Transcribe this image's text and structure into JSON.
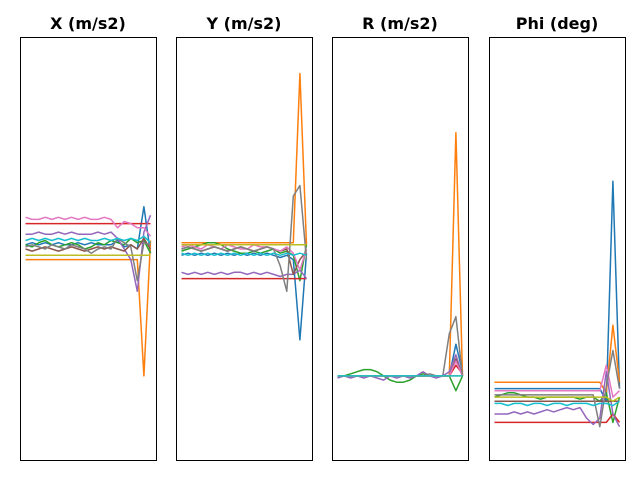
{
  "chart_data": [
    {
      "type": "line",
      "title": "X (m/s2)",
      "xlabel": "",
      "ylabel": "",
      "xlim": [
        0,
        20
      ],
      "ylim": [
        -1,
        1
      ],
      "grid": false,
      "series": [
        {
          "color": "#1f77b4",
          "values": [
            0.02,
            0.03,
            0.02,
            0.03,
            0.02,
            0.03,
            0.02,
            0.02,
            0.03,
            0.02,
            0.03,
            0.02,
            0.02,
            0.02,
            0.04,
            0.01,
            0.02,
            0.0,
            0.2,
            -0.02
          ]
        },
        {
          "color": "#ff7f0e",
          "values": [
            -0.05,
            -0.05,
            -0.05,
            -0.05,
            -0.05,
            -0.05,
            -0.05,
            -0.05,
            -0.05,
            -0.05,
            -0.05,
            -0.05,
            -0.05,
            -0.05,
            -0.05,
            -0.05,
            -0.05,
            -0.05,
            -0.6,
            0.04
          ]
        },
        {
          "color": "#2ca02c",
          "values": [
            0.02,
            0.01,
            0.03,
            0.04,
            0.02,
            0.01,
            0.02,
            0.03,
            0.02,
            0.0,
            0.01,
            0.03,
            0.02,
            0.04,
            0.03,
            0.02,
            0.05,
            0.03,
            0.04,
            -0.02
          ]
        },
        {
          "color": "#d62728",
          "values": [
            0.12,
            0.12,
            0.12,
            0.12,
            0.12,
            0.12,
            0.12,
            0.12,
            0.12,
            0.12,
            0.12,
            0.12,
            0.12,
            0.12,
            0.12,
            0.12,
            0.12,
            0.12,
            0.12,
            0.12
          ]
        },
        {
          "color": "#9467bd",
          "values": [
            0.07,
            0.07,
            0.08,
            0.07,
            0.07,
            0.08,
            0.07,
            0.08,
            0.07,
            0.07,
            0.07,
            0.08,
            0.07,
            0.08,
            0.05,
            0.0,
            -0.05,
            -0.2,
            0.08,
            0.16
          ]
        },
        {
          "color": "#8c564b",
          "values": [
            0.0,
            -0.01,
            0.0,
            0.01,
            0.0,
            -0.01,
            0.0,
            0.01,
            0.0,
            -0.01,
            0.0,
            0.01,
            0.0,
            0.01,
            0.0,
            -0.01,
            0.02,
            0.0,
            0.05,
            0.0
          ]
        },
        {
          "color": "#e377c2",
          "values": [
            0.15,
            0.14,
            0.14,
            0.15,
            0.14,
            0.15,
            0.14,
            0.15,
            0.14,
            0.15,
            0.14,
            0.14,
            0.15,
            0.14,
            0.1,
            0.13,
            0.12,
            0.1,
            0.1,
            0.06
          ]
        },
        {
          "color": "#7f7f7f",
          "values": [
            0.01,
            0.02,
            0.01,
            0.0,
            0.02,
            0.01,
            0.0,
            0.02,
            0.01,
            0.0,
            -0.02,
            0.0,
            0.01,
            0.0,
            0.05,
            0.03,
            0.01,
            -0.15,
            0.03,
            0.02
          ]
        },
        {
          "color": "#bcbd22",
          "values": [
            -0.03,
            -0.03,
            -0.03,
            -0.03,
            -0.03,
            -0.03,
            -0.03,
            -0.03,
            -0.03,
            -0.03,
            -0.03,
            -0.03,
            -0.03,
            -0.03,
            -0.03,
            -0.03,
            -0.03,
            -0.03,
            -0.03,
            -0.03
          ]
        },
        {
          "color": "#17becf",
          "values": [
            0.04,
            0.05,
            0.04,
            0.05,
            0.04,
            0.05,
            0.04,
            0.05,
            0.04,
            0.05,
            0.04,
            0.04,
            0.05,
            0.04,
            0.05,
            0.04,
            0.05,
            0.04,
            0.06,
            0.03
          ]
        }
      ]
    },
    {
      "type": "line",
      "title": "Y (m/s2)",
      "xlabel": "",
      "ylabel": "",
      "xlim": [
        0,
        20
      ],
      "ylim": [
        -1,
        1
      ],
      "grid": false,
      "series": [
        {
          "color": "#1f77b4",
          "values": [
            -0.03,
            -0.02,
            -0.03,
            -0.02,
            -0.03,
            -0.02,
            -0.03,
            -0.02,
            -0.03,
            -0.02,
            -0.03,
            -0.02,
            -0.03,
            -0.02,
            -0.03,
            -0.04,
            -0.03,
            -0.05,
            -0.43,
            -0.02
          ]
        },
        {
          "color": "#ff7f0e",
          "values": [
            0.03,
            0.03,
            0.03,
            0.03,
            0.03,
            0.03,
            0.03,
            0.03,
            0.03,
            0.03,
            0.03,
            0.03,
            0.03,
            0.03,
            0.03,
            0.03,
            0.03,
            0.03,
            0.83,
            0.02
          ]
        },
        {
          "color": "#2ca02c",
          "values": [
            -0.01,
            0.0,
            0.01,
            0.02,
            0.03,
            0.03,
            0.02,
            0.0,
            -0.01,
            -0.02,
            -0.02,
            -0.01,
            -0.02,
            -0.01,
            0.0,
            -0.02,
            -0.01,
            -0.03,
            -0.15,
            0.02
          ]
        },
        {
          "color": "#d62728",
          "values": [
            -0.14,
            -0.14,
            -0.14,
            -0.14,
            -0.14,
            -0.14,
            -0.14,
            -0.14,
            -0.14,
            -0.14,
            -0.14,
            -0.14,
            -0.14,
            -0.14,
            -0.14,
            -0.14,
            -0.14,
            -0.14,
            -0.14,
            -0.14
          ]
        },
        {
          "color": "#9467bd",
          "values": [
            -0.11,
            -0.12,
            -0.11,
            -0.12,
            -0.11,
            -0.12,
            -0.11,
            -0.12,
            -0.11,
            -0.11,
            -0.12,
            -0.11,
            -0.12,
            -0.11,
            -0.12,
            -0.13,
            -0.12,
            -0.12,
            -0.1,
            -0.14
          ]
        },
        {
          "color": "#8c564b",
          "values": [
            0.0,
            0.01,
            0.0,
            -0.01,
            0.0,
            0.01,
            0.0,
            -0.01,
            0.0,
            0.01,
            0.0,
            -0.01,
            0.0,
            0.01,
            0.0,
            -0.01,
            0.0,
            -0.12,
            -0.05,
            -0.01
          ]
        },
        {
          "color": "#e377c2",
          "values": [
            0.01,
            0.02,
            0.01,
            0.0,
            0.02,
            0.01,
            0.0,
            0.02,
            0.01,
            0.0,
            0.0,
            0.02,
            0.01,
            0.01,
            0.0,
            -0.01,
            0.01,
            -0.02,
            -0.1,
            0.0
          ]
        },
        {
          "color": "#7f7f7f",
          "values": [
            0.0,
            0.01,
            0.0,
            -0.01,
            0.0,
            0.01,
            0.0,
            -0.01,
            0.0,
            0.01,
            0.0,
            -0.01,
            0.0,
            0.01,
            0.0,
            -0.08,
            -0.2,
            0.25,
            0.3,
            -0.05
          ]
        },
        {
          "color": "#bcbd22",
          "values": [
            0.02,
            0.02,
            0.02,
            0.02,
            0.02,
            0.02,
            0.02,
            0.02,
            0.02,
            0.02,
            0.02,
            0.02,
            0.02,
            0.02,
            0.02,
            0.02,
            0.02,
            0.02,
            0.02,
            0.02
          ]
        },
        {
          "color": "#17becf",
          "values": [
            -0.02,
            -0.03,
            -0.02,
            -0.03,
            -0.02,
            -0.03,
            -0.02,
            -0.03,
            -0.02,
            -0.03,
            -0.02,
            -0.03,
            -0.02,
            -0.03,
            -0.02,
            -0.03,
            -0.02,
            -0.03,
            -0.02,
            -0.03
          ]
        }
      ]
    },
    {
      "type": "line",
      "title": "R (m/s2)",
      "xlabel": "",
      "ylabel": "",
      "xlim": [
        0,
        20
      ],
      "ylim": [
        -1,
        1
      ],
      "grid": false,
      "series": [
        {
          "color": "#1f77b4",
          "values": [
            -0.6,
            -0.6,
            -0.6,
            -0.6,
            -0.6,
            -0.6,
            -0.6,
            -0.6,
            -0.6,
            -0.6,
            -0.6,
            -0.6,
            -0.6,
            -0.6,
            -0.6,
            -0.6,
            -0.6,
            -0.6,
            -0.45,
            -0.58
          ]
        },
        {
          "color": "#ff7f0e",
          "values": [
            -0.6,
            -0.6,
            -0.6,
            -0.6,
            -0.6,
            -0.6,
            -0.6,
            -0.6,
            -0.6,
            -0.6,
            -0.6,
            -0.6,
            -0.6,
            -0.6,
            -0.6,
            -0.6,
            -0.6,
            -0.6,
            0.55,
            -0.6
          ]
        },
        {
          "color": "#2ca02c",
          "values": [
            -0.6,
            -0.6,
            -0.59,
            -0.58,
            -0.57,
            -0.57,
            -0.58,
            -0.6,
            -0.62,
            -0.63,
            -0.63,
            -0.62,
            -0.6,
            -0.59,
            -0.6,
            -0.6,
            -0.6,
            -0.6,
            -0.67,
            -0.6
          ]
        },
        {
          "color": "#d62728",
          "values": [
            -0.6,
            -0.6,
            -0.6,
            -0.6,
            -0.6,
            -0.6,
            -0.6,
            -0.6,
            -0.6,
            -0.6,
            -0.6,
            -0.6,
            -0.6,
            -0.6,
            -0.6,
            -0.6,
            -0.6,
            -0.6,
            -0.55,
            -0.59
          ]
        },
        {
          "color": "#9467bd",
          "values": [
            -0.61,
            -0.6,
            -0.61,
            -0.6,
            -0.61,
            -0.6,
            -0.61,
            -0.62,
            -0.6,
            -0.61,
            -0.6,
            -0.61,
            -0.6,
            -0.58,
            -0.6,
            -0.61,
            -0.6,
            -0.58,
            -0.5,
            -0.6
          ]
        },
        {
          "color": "#8c564b",
          "values": [
            -0.6,
            -0.6,
            -0.6,
            -0.6,
            -0.6,
            -0.6,
            -0.6,
            -0.6,
            -0.6,
            -0.6,
            -0.6,
            -0.6,
            -0.6,
            -0.6,
            -0.6,
            -0.6,
            -0.6,
            -0.6,
            -0.52,
            -0.6
          ]
        },
        {
          "color": "#e377c2",
          "values": [
            -0.6,
            -0.6,
            -0.6,
            -0.6,
            -0.6,
            -0.6,
            -0.6,
            -0.6,
            -0.6,
            -0.6,
            -0.6,
            -0.6,
            -0.6,
            -0.6,
            -0.6,
            -0.6,
            -0.6,
            -0.6,
            -0.53,
            -0.6
          ]
        },
        {
          "color": "#7f7f7f",
          "values": [
            -0.6,
            -0.6,
            -0.6,
            -0.6,
            -0.6,
            -0.6,
            -0.6,
            -0.6,
            -0.6,
            -0.6,
            -0.6,
            -0.6,
            -0.6,
            -0.6,
            -0.59,
            -0.6,
            -0.6,
            -0.4,
            -0.32,
            -0.6
          ]
        },
        {
          "color": "#bcbd22",
          "values": [
            -0.6,
            -0.6,
            -0.6,
            -0.6,
            -0.6,
            -0.6,
            -0.6,
            -0.6,
            -0.6,
            -0.6,
            -0.6,
            -0.6,
            -0.6,
            -0.6,
            -0.6,
            -0.6,
            -0.6,
            -0.6,
            -0.6,
            -0.6
          ]
        },
        {
          "color": "#17becf",
          "values": [
            -0.6,
            -0.6,
            -0.6,
            -0.6,
            -0.6,
            -0.6,
            -0.6,
            -0.6,
            -0.6,
            -0.6,
            -0.6,
            -0.6,
            -0.6,
            -0.6,
            -0.6,
            -0.6,
            -0.6,
            -0.6,
            -0.6,
            -0.6
          ]
        }
      ]
    },
    {
      "type": "line",
      "title": "Phi (deg)",
      "xlabel": "",
      "ylabel": "",
      "xlim": [
        0,
        20
      ],
      "ylim": [
        -1,
        1
      ],
      "grid": false,
      "series": [
        {
          "color": "#1f77b4",
          "values": [
            -0.66,
            -0.66,
            -0.66,
            -0.66,
            -0.66,
            -0.66,
            -0.66,
            -0.66,
            -0.66,
            -0.66,
            -0.66,
            -0.66,
            -0.66,
            -0.66,
            -0.66,
            -0.66,
            -0.66,
            -0.72,
            0.32,
            -0.66
          ]
        },
        {
          "color": "#ff7f0e",
          "values": [
            -0.63,
            -0.63,
            -0.63,
            -0.63,
            -0.63,
            -0.63,
            -0.63,
            -0.63,
            -0.63,
            -0.63,
            -0.63,
            -0.63,
            -0.63,
            -0.63,
            -0.63,
            -0.63,
            -0.63,
            -0.68,
            -0.36,
            -0.63
          ]
        },
        {
          "color": "#2ca02c",
          "values": [
            -0.7,
            -0.69,
            -0.68,
            -0.68,
            -0.69,
            -0.7,
            -0.7,
            -0.71,
            -0.7,
            -0.7,
            -0.7,
            -0.7,
            -0.7,
            -0.71,
            -0.7,
            -0.7,
            -0.72,
            -0.68,
            -0.82,
            -0.7
          ]
        },
        {
          "color": "#d62728",
          "values": [
            -0.82,
            -0.82,
            -0.82,
            -0.82,
            -0.82,
            -0.82,
            -0.82,
            -0.82,
            -0.82,
            -0.82,
            -0.82,
            -0.82,
            -0.82,
            -0.82,
            -0.82,
            -0.82,
            -0.82,
            -0.82,
            -0.78,
            -0.82
          ]
        },
        {
          "color": "#9467bd",
          "values": [
            -0.78,
            -0.78,
            -0.78,
            -0.77,
            -0.78,
            -0.77,
            -0.78,
            -0.77,
            -0.76,
            -0.77,
            -0.76,
            -0.75,
            -0.76,
            -0.75,
            -0.8,
            -0.83,
            -0.8,
            -0.58,
            -0.78,
            -0.84
          ]
        },
        {
          "color": "#8c564b",
          "values": [
            -0.72,
            -0.72,
            -0.72,
            -0.72,
            -0.72,
            -0.72,
            -0.72,
            -0.72,
            -0.72,
            -0.72,
            -0.72,
            -0.72,
            -0.72,
            -0.72,
            -0.72,
            -0.72,
            -0.72,
            -0.72,
            -0.72,
            -0.72
          ]
        },
        {
          "color": "#e377c2",
          "values": [
            -0.67,
            -0.67,
            -0.67,
            -0.67,
            -0.67,
            -0.67,
            -0.67,
            -0.67,
            -0.67,
            -0.67,
            -0.67,
            -0.67,
            -0.67,
            -0.67,
            -0.67,
            -0.67,
            -0.67,
            -0.55,
            -0.7,
            -0.67
          ]
        },
        {
          "color": "#7f7f7f",
          "values": [
            -0.69,
            -0.69,
            -0.69,
            -0.69,
            -0.69,
            -0.69,
            -0.69,
            -0.69,
            -0.69,
            -0.69,
            -0.69,
            -0.69,
            -0.69,
            -0.69,
            -0.69,
            -0.69,
            -0.84,
            -0.65,
            -0.48,
            -0.66
          ]
        },
        {
          "color": "#bcbd22",
          "values": [
            -0.7,
            -0.7,
            -0.7,
            -0.7,
            -0.7,
            -0.7,
            -0.7,
            -0.7,
            -0.7,
            -0.7,
            -0.7,
            -0.7,
            -0.7,
            -0.7,
            -0.7,
            -0.7,
            -0.7,
            -0.7,
            -0.72,
            -0.7
          ]
        },
        {
          "color": "#17becf",
          "values": [
            -0.73,
            -0.73,
            -0.74,
            -0.73,
            -0.73,
            -0.74,
            -0.73,
            -0.73,
            -0.74,
            -0.73,
            -0.73,
            -0.74,
            -0.73,
            -0.73,
            -0.73,
            -0.74,
            -0.73,
            -0.73,
            -0.74,
            -0.72
          ]
        }
      ]
    }
  ]
}
